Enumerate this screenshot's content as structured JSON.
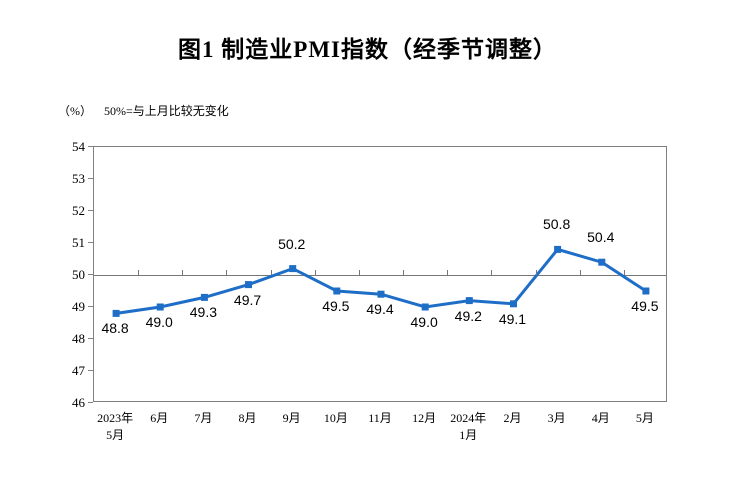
{
  "chart_data": {
    "type": "line",
    "title": "图1 制造业PMI指数（经季节调整）",
    "unit_label": "（%）",
    "note": "50%=与上月比较无变化",
    "categories": [
      [
        "2023年",
        "5月"
      ],
      [
        "6月"
      ],
      [
        "7月"
      ],
      [
        "8月"
      ],
      [
        "9月"
      ],
      [
        "10月"
      ],
      [
        "11月"
      ],
      [
        "12月"
      ],
      [
        "2024年",
        "1月"
      ],
      [
        "2月"
      ],
      [
        "3月"
      ],
      [
        "4月"
      ],
      [
        "5月"
      ]
    ],
    "series": [
      {
        "name": "制造业PMI",
        "values": [
          48.8,
          49.0,
          49.3,
          49.7,
          50.2,
          49.5,
          49.4,
          49.0,
          49.2,
          49.1,
          50.8,
          50.4,
          49.5
        ]
      }
    ],
    "ylim": [
      46,
      54
    ],
    "ytick_step": 1,
    "reference_value": 50,
    "grid": "off",
    "legend": "none",
    "colors": {
      "line": "#1e6ec8",
      "axis": "#808080",
      "reference_line": "#777777",
      "text": "#000000"
    }
  }
}
